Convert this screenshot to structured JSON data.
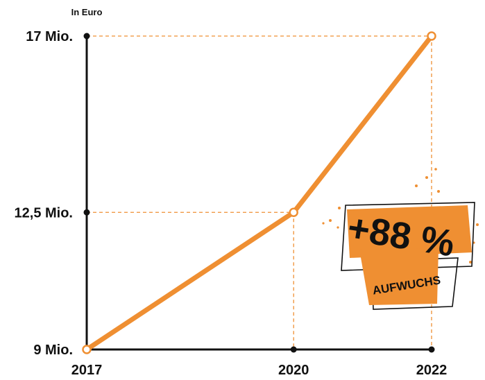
{
  "chart_data": {
    "type": "line",
    "unit_label": "In Euro",
    "x": [
      "2017",
      "2020",
      "2022"
    ],
    "values": [
      9,
      12.5,
      17
    ],
    "y_ticks": [
      9,
      12.5,
      17
    ],
    "y_tick_labels": [
      "9 Mio.",
      "12,5 Mio.",
      "17 Mio."
    ],
    "ylim": [
      9,
      17
    ],
    "grid": "dashed guides from each point to both axes",
    "colors": {
      "line": "#ef8f32",
      "axis": "#111111",
      "guide": "#ef8f32"
    },
    "annotation": {
      "value": "+88 %",
      "label": "AUFWUCHS"
    }
  }
}
